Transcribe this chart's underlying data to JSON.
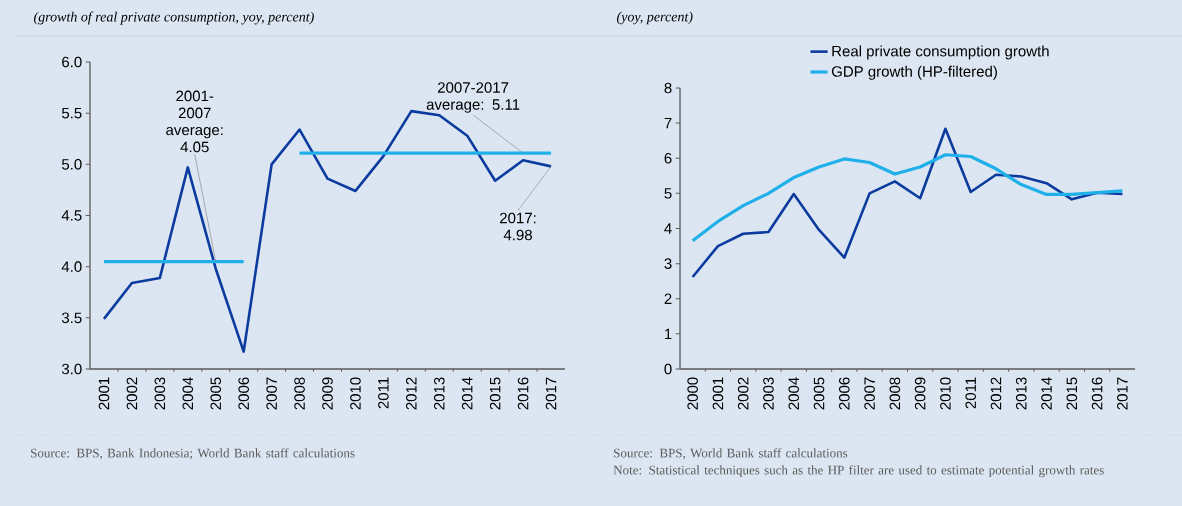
{
  "chart_data": [
    {
      "type": "line",
      "subtitle": "(growth of real private consumption, yoy, percent)",
      "categories": [
        "2001",
        "2002",
        "2003",
        "2004",
        "2005",
        "2006",
        "2007",
        "2008",
        "2009",
        "2010",
        "2011",
        "2012",
        "2013",
        "2014",
        "2015",
        "2016",
        "2017"
      ],
      "series": [
        {
          "color": "#0b3b9e",
          "values": [
            3.49,
            3.84,
            3.89,
            4.97,
            3.98,
            3.17,
            5.0,
            5.34,
            4.86,
            4.74,
            5.08,
            5.52,
            5.48,
            5.28,
            4.84,
            5.04,
            4.98
          ]
        },
        {
          "color": "#1fb0ea",
          "values": [
            4.05,
            4.05,
            4.05,
            4.05,
            4.05,
            4.05,
            null,
            null,
            null,
            null,
            null,
            null,
            null,
            null,
            null,
            null,
            null
          ]
        },
        {
          "color": "#1fb0ea",
          "values": [
            null,
            null,
            null,
            null,
            null,
            null,
            null,
            5.11,
            5.11,
            5.11,
            5.11,
            5.11,
            5.11,
            5.11,
            5.11,
            5.11,
            5.11
          ]
        }
      ],
      "ylim": [
        3.0,
        6.0
      ],
      "yticks": [
        {
          "value": 3.0,
          "label": "3.0"
        },
        {
          "value": 3.5,
          "label": "3.5"
        },
        {
          "value": 4.0,
          "label": "4.0"
        },
        {
          "value": 4.5,
          "label": "4.5"
        },
        {
          "value": 5.0,
          "label": "5.0"
        },
        {
          "value": 5.5,
          "label": "5.5"
        },
        {
          "value": 6.0,
          "label": "6.0"
        }
      ],
      "annotations": [
        {
          "text": "2001-2007 average: 4.05",
          "x": "2005",
          "y": 4.05
        },
        {
          "text": "2007-2017 average: 5.11",
          "x": "2016",
          "y": 5.11
        },
        {
          "text": "2017: 4.98",
          "x": "2017",
          "y": 4.98
        },
        "Source: BPS, Bank Indonesia; World Bank staff calculations"
      ]
    },
    {
      "type": "line",
      "subtitle": "(yoy, percent)",
      "categories": [
        "2000",
        "2001",
        "2002",
        "2003",
        "2004",
        "2005",
        "2006",
        "2007",
        "2008",
        "2009",
        "2010",
        "2011",
        "2012",
        "2013",
        "2014",
        "2015",
        "2016",
        "2017"
      ],
      "series": [
        {
          "name": "Real private consumption growth",
          "color": "#0b3b9e",
          "values": [
            2.62,
            3.5,
            3.85,
            3.9,
            4.98,
            3.96,
            3.17,
            5.0,
            5.34,
            4.86,
            6.84,
            5.04,
            5.53,
            5.48,
            5.29,
            4.83,
            5.02,
            4.98
          ]
        },
        {
          "name": "GDP growth (HP-filtered)",
          "color": "#1fb0ea",
          "values": [
            3.65,
            4.2,
            4.65,
            5.0,
            5.45,
            5.75,
            5.98,
            5.88,
            5.55,
            5.75,
            6.1,
            6.05,
            5.7,
            5.25,
            4.97,
            4.97,
            5.02,
            5.07
          ]
        }
      ],
      "ylim": [
        0,
        8
      ],
      "yticks": [
        0,
        1,
        2,
        3,
        4,
        5,
        6,
        7,
        8
      ],
      "legend": "top",
      "annotations": [
        "Source: BPS, World Bank staff calculations",
        "Note: Statistical techniques such as the HP filter are used to estimate potential growth rates"
      ]
    }
  ]
}
